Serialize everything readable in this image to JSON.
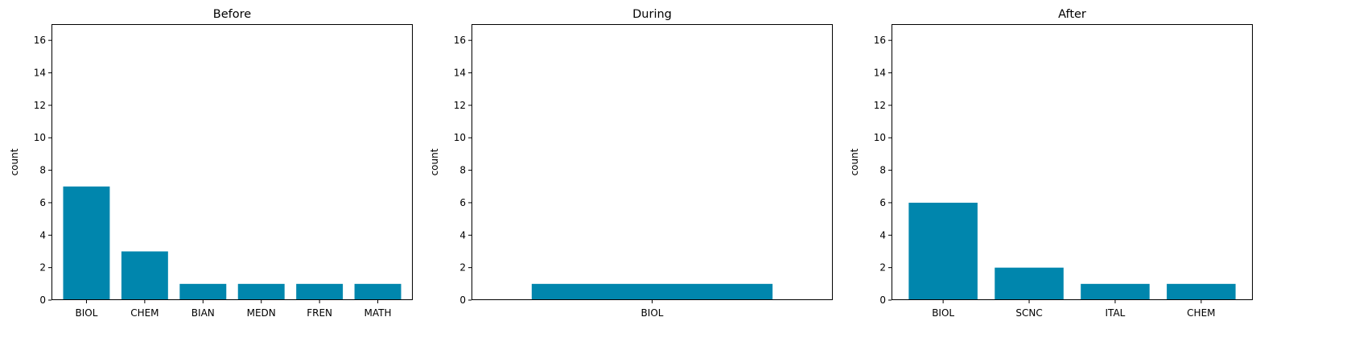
{
  "chart_data": [
    {
      "type": "bar",
      "title": "Before",
      "xlabel": "",
      "ylabel": "count",
      "ylim": [
        0,
        17
      ],
      "yticks": [
        0,
        2,
        4,
        6,
        8,
        10,
        12,
        14,
        16
      ],
      "categories": [
        "BIOL",
        "CHEM",
        "BIAN",
        "MEDN",
        "FREN",
        "MATH"
      ],
      "values": [
        7,
        3,
        1,
        1,
        1,
        1
      ],
      "color": "#0086ad",
      "grid": false
    },
    {
      "type": "bar",
      "title": "During",
      "xlabel": "",
      "ylabel": "count",
      "ylim": [
        0,
        17
      ],
      "yticks": [
        0,
        2,
        4,
        6,
        8,
        10,
        12,
        14,
        16
      ],
      "categories": [
        "BIOL"
      ],
      "values": [
        1
      ],
      "color": "#0086ad",
      "grid": false
    },
    {
      "type": "bar",
      "title": "After",
      "xlabel": "",
      "ylabel": "count",
      "ylim": [
        0,
        17
      ],
      "yticks": [
        0,
        2,
        4,
        6,
        8,
        10,
        12,
        14,
        16
      ],
      "categories": [
        "BIOL",
        "SCNC",
        "ITAL",
        "CHEM"
      ],
      "values": [
        6,
        2,
        1,
        1
      ],
      "color": "#0086ad",
      "grid": false
    }
  ]
}
